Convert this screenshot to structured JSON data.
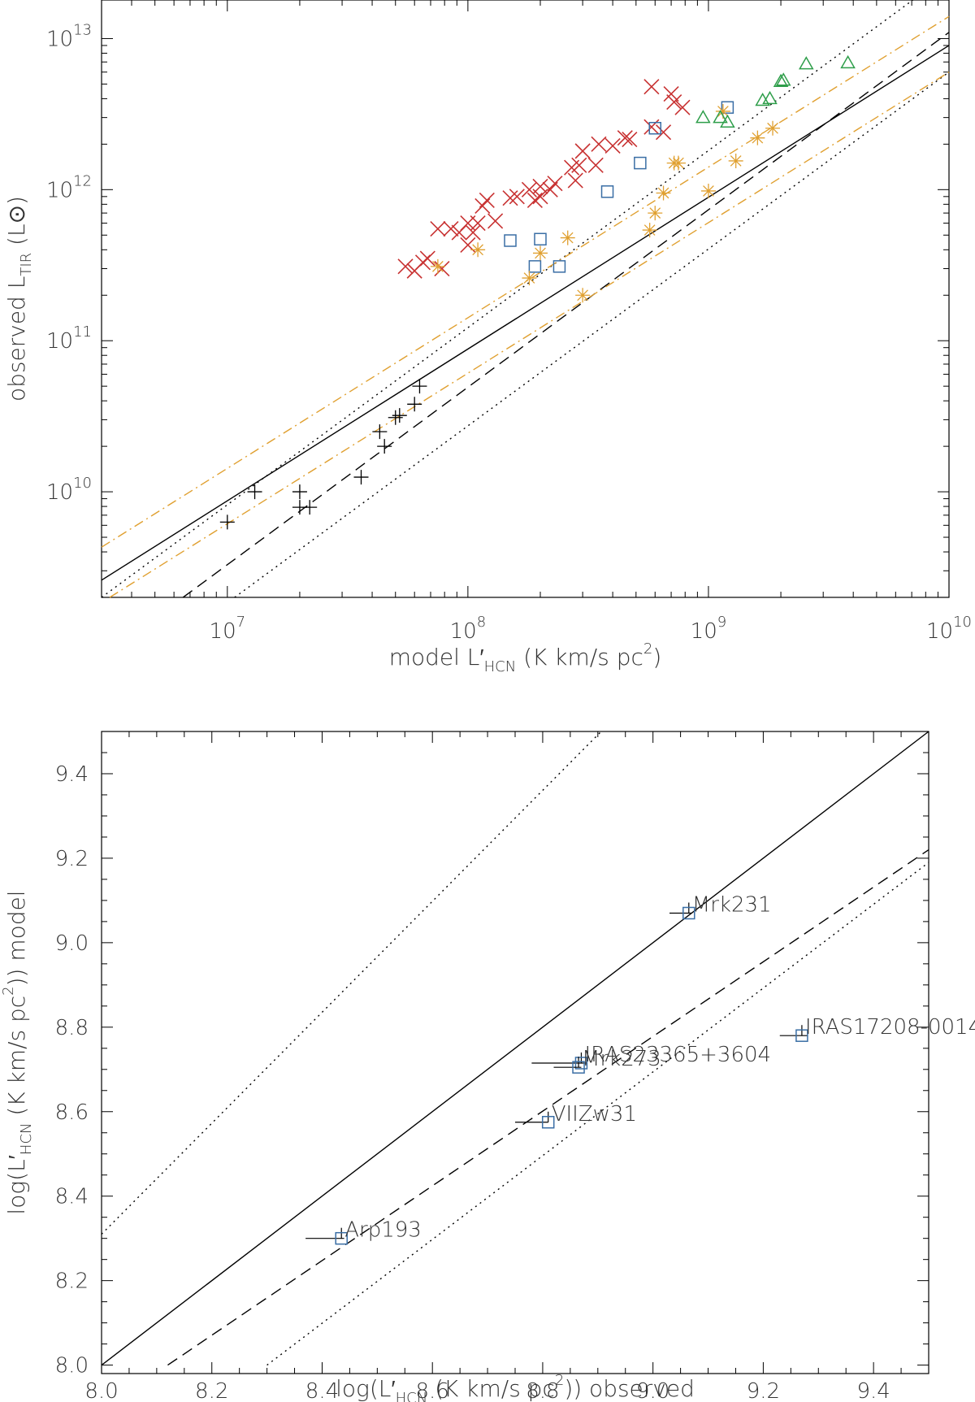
{
  "chart_data": [
    {
      "type": "scatter",
      "xscale": "log",
      "yscale": "log",
      "xlim": [
        3000000,
        10000000000
      ],
      "ylim": [
        2000000000,
        18000000000000
      ],
      "xlabel": {
        "pre": "model L",
        "prime": "′",
        "sub": "HCN",
        "mid": "  (K km/s pc",
        "sup": "2",
        "post": ")"
      },
      "ylabel": {
        "pre": "observed L",
        "sub": "TIR",
        "post": " (L",
        "sun": "⊙",
        "end": ")"
      },
      "xticks": [
        {
          "base": "10",
          "exp": "7",
          "v": 10000000
        },
        {
          "base": "10",
          "exp": "8",
          "v": 100000000
        },
        {
          "base": "10",
          "exp": "9",
          "v": 1000000000
        },
        {
          "base": "10",
          "exp": "10",
          "v": 10000000000
        }
      ],
      "yticks": [
        {
          "base": "10",
          "exp": "10",
          "v": 10000000000
        },
        {
          "base": "10",
          "exp": "11",
          "v": 100000000000
        },
        {
          "base": "10",
          "exp": "12",
          "v": 1000000000000
        },
        {
          "base": "10",
          "exp": "13",
          "v": 10000000000000
        }
      ],
      "lines": [
        {
          "style": "solid",
          "color": "#000000",
          "pts": [
            [
              3000000,
              2600000000
            ],
            [
              10000000000,
              9000000000000
            ]
          ]
        },
        {
          "style": "dashed",
          "color": "#000000",
          "pts": [
            [
              3000000,
              800000000
            ],
            [
              10000000000,
              11000000000000
            ]
          ]
        },
        {
          "style": "dotted",
          "color": "#000000",
          "pts": [
            [
              3000000,
              2000000000
            ],
            [
              10000000000,
              27000000000000
            ]
          ]
        },
        {
          "style": "dotted",
          "color": "#000000",
          "pts": [
            [
              3000000,
              450000000
            ],
            [
              10000000000,
              6000000000000
            ]
          ]
        },
        {
          "style": "dashdot",
          "color": "#e0a030",
          "pts": [
            [
              3000000,
              4300000000
            ],
            [
              10000000000,
              14000000000000
            ]
          ]
        },
        {
          "style": "dashdot",
          "color": "#e0a030",
          "pts": [
            [
              3000000,
              1850000000
            ],
            [
              10000000000,
              6000000000000
            ]
          ]
        }
      ],
      "series": [
        {
          "marker": "plus",
          "color": "#000000",
          "points": [
            [
              10000000,
              6300000000
            ],
            [
              13000000,
              10000000000
            ],
            [
              20000000,
              10000000000
            ],
            [
              20000000,
              7900000000
            ],
            [
              22000000,
              7900000000
            ],
            [
              36000000,
              12500000000
            ],
            [
              43000000,
              25000000000
            ],
            [
              45000000,
              20000000000
            ],
            [
              50000000,
              31000000000
            ],
            [
              52000000,
              32000000000
            ],
            [
              60000000,
              38000000000
            ],
            [
              63000000,
              50000000000
            ]
          ]
        },
        {
          "marker": "x",
          "color": "#c83232",
          "points": [
            [
              55000000,
              310000000000
            ],
            [
              60000000,
              290000000000
            ],
            [
              65000000,
              330000000000
            ],
            [
              68000000,
              350000000000
            ],
            [
              78000000,
              300000000000
            ],
            [
              75000000,
              550000000000
            ],
            [
              85000000,
              550000000000
            ],
            [
              92000000,
              520000000000
            ],
            [
              100000000,
              430000000000
            ],
            [
              100000000,
              600000000000
            ],
            [
              105000000,
              520000000000
            ],
            [
              110000000,
              600000000000
            ],
            [
              115000000,
              780000000000
            ],
            [
              120000000,
              850000000000
            ],
            [
              130000000,
              620000000000
            ],
            [
              150000000,
              880000000000
            ],
            [
              160000000,
              900000000000
            ],
            [
              180000000,
              1000000000000
            ],
            [
              190000000,
              850000000000
            ],
            [
              200000000,
              900000000000
            ],
            [
              200000000,
              1050000000000
            ],
            [
              220000000,
              1000000000000
            ],
            [
              230000000,
              1100000000000
            ],
            [
              270000000,
              1400000000000
            ],
            [
              290000000,
              1450000000000
            ],
            [
              280000000,
              1150000000000
            ],
            [
              300000000,
              1800000000000
            ],
            [
              340000000,
              1450000000000
            ],
            [
              350000000,
              2000000000000
            ],
            [
              400000000,
              1950000000000
            ],
            [
              450000000,
              2200000000000
            ],
            [
              470000000,
              2150000000000
            ],
            [
              580000000,
              2600000000000
            ],
            [
              580000000,
              4800000000000
            ],
            [
              650000000,
              2400000000000
            ],
            [
              700000000,
              4300000000000
            ],
            [
              720000000,
              3800000000000
            ],
            [
              780000000,
              3500000000000
            ]
          ]
        },
        {
          "marker": "square",
          "color": "#3a6ea5",
          "points": [
            [
              150000000,
              460000000000
            ],
            [
              190000000,
              310000000000
            ],
            [
              200000000,
              470000000000
            ],
            [
              240000000,
              310000000000
            ],
            [
              380000000,
              970000000000
            ],
            [
              520000000,
              1500000000000
            ],
            [
              600000000,
              2550000000000
            ],
            [
              1200000000,
              3500000000000
            ]
          ]
        },
        {
          "marker": "asterisk",
          "color": "#e0a030",
          "points": [
            [
              75000000,
              310000000000
            ],
            [
              110000000,
              400000000000
            ],
            [
              180000000,
              260000000000
            ],
            [
              200000000,
              380000000000
            ],
            [
              260000000,
              480000000000
            ],
            [
              300000000,
              200000000000
            ],
            [
              570000000,
              540000000000
            ],
            [
              600000000,
              700000000000
            ],
            [
              650000000,
              950000000000
            ],
            [
              720000000,
              1500000000000
            ],
            [
              750000000,
              1500000000000
            ],
            [
              1000000000,
              980000000000
            ],
            [
              1150000000,
              3300000000000
            ],
            [
              1300000000,
              1550000000000
            ],
            [
              1600000000,
              2200000000000
            ],
            [
              1850000000,
              2550000000000
            ]
          ]
        },
        {
          "marker": "triangle",
          "color": "#2e9e4a",
          "points": [
            [
              950000000,
              3000000000000
            ],
            [
              1120000000,
              3000000000000
            ],
            [
              1200000000,
              2800000000000
            ],
            [
              1680000000,
              3900000000000
            ],
            [
              1800000000,
              4000000000000
            ],
            [
              2000000000,
              5200000000000
            ],
            [
              2050000000,
              5300000000000
            ],
            [
              2550000000,
              6800000000000
            ],
            [
              3800000000,
              6900000000000
            ]
          ]
        }
      ]
    },
    {
      "type": "scatter",
      "xlim": [
        8.0,
        9.5
      ],
      "ylim": [
        7.98,
        9.5
      ],
      "xlabel": {
        "pre": "log(L",
        "prime": "′",
        "sub": "HCN",
        "mid": "  (K km/s pc",
        "sup": "2",
        "post": ")) observed"
      },
      "ylabel": {
        "pre": "log(L",
        "prime": "′",
        "sub": "HCN",
        "mid": "  (K km/s pc",
        "sup": "2",
        "post": ")) model"
      },
      "xticks": [
        "8.0",
        "8.2",
        "8.4",
        "8.6",
        "8.8",
        "9.0",
        "9.2",
        "9.4"
      ],
      "yticks": [
        "8.0",
        "8.2",
        "8.4",
        "8.6",
        "8.8",
        "9.0",
        "9.2",
        "9.4"
      ],
      "lines": [
        {
          "style": "solid",
          "color": "#000000",
          "pts": [
            [
              8.0,
              8.0
            ],
            [
              9.5,
              9.5
            ]
          ]
        },
        {
          "style": "dashed",
          "color": "#000000",
          "pts": [
            [
              8.12,
              8.0
            ],
            [
              9.5,
              9.22
            ]
          ]
        },
        {
          "style": "dotted",
          "color": "#000000",
          "pts": [
            [
              8.0,
              8.31
            ],
            [
              9.5,
              10.28
            ]
          ]
        },
        {
          "style": "dotted",
          "color": "#000000",
          "pts": [
            [
              8.3,
              8.0
            ],
            [
              9.5,
              9.19
            ]
          ]
        }
      ],
      "points": [
        {
          "label": "Arp193",
          "x": 8.435,
          "y": 8.3,
          "xerr": [
            8.37,
            8.44
          ]
        },
        {
          "label": "VIIZw31",
          "x": 8.81,
          "y": 8.575,
          "xerr": [
            8.75,
            8.81
          ]
        },
        {
          "label": "IRAS23365+3604",
          "x": 8.87,
          "y": 8.715,
          "xerr": [
            8.78,
            8.88
          ]
        },
        {
          "label": "Mrk273",
          "x": 8.865,
          "y": 8.705,
          "xerr": [
            8.82,
            8.87
          ]
        },
        {
          "label": "Mrk231",
          "x": 9.065,
          "y": 9.07,
          "xerr": [
            9.03,
            9.07
          ]
        },
        {
          "label": "IRAS17208-0014",
          "x": 9.27,
          "y": 8.78,
          "xerr": [
            9.23,
            9.28
          ]
        }
      ]
    }
  ]
}
